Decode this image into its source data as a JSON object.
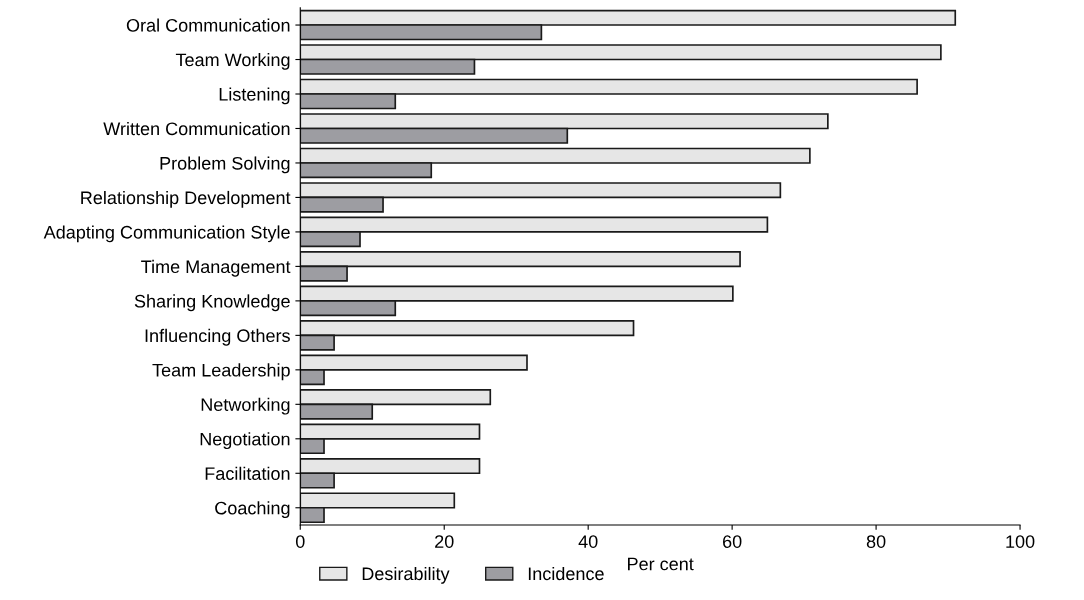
{
  "chart_data": {
    "type": "bar",
    "orientation": "horizontal",
    "xlabel": "Per cent",
    "categories": [
      "Oral Communication",
      "Team Working",
      "Listening",
      "Written Communication",
      "Problem Solving",
      "Relationship Development",
      "Adapting Communication Style",
      "Time Management",
      "Sharing Knowledge",
      "Influencing Others",
      "Team Leadership",
      "Networking",
      "Negotiation",
      "Facilitation",
      "Coaching"
    ],
    "series": [
      {
        "name": "Desirability",
        "color": "#e6e6e6",
        "values": [
          91,
          89,
          85.7,
          73.3,
          70.8,
          66.7,
          64.9,
          61.1,
          60.1,
          46.3,
          31.5,
          26.4,
          24.9,
          24.9,
          21.4
        ]
      },
      {
        "name": "Incidence",
        "color": "#9d9da2",
        "values": [
          33.5,
          24.2,
          13.2,
          37.1,
          18.2,
          11.5,
          8.3,
          6.5,
          13.2,
          4.7,
          3.3,
          10,
          3.3,
          4.7,
          3.3
        ]
      }
    ],
    "xlim": [
      0,
      100
    ],
    "xticks": [
      0,
      20,
      40,
      60,
      80,
      100
    ],
    "grid": false,
    "legend": "bottom"
  }
}
